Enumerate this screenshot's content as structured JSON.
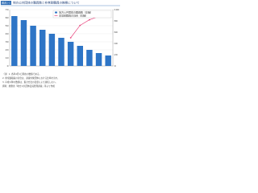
{
  "chart_data": {
    "type": "bar_line",
    "figure_label": "図表1-1",
    "title": "地方公共団体の職員数と非常勤職員の推移について",
    "categories": [
      null,
      null,
      null,
      null,
      null,
      null,
      null,
      null,
      null,
      null,
      null
    ],
    "series": [
      {
        "name": "地方公共団体の職員数（左軸）",
        "color": "#2e75c6",
        "type": "bar",
        "values": [
          62,
          57,
          50,
          45,
          40,
          35,
          30,
          25,
          20,
          16,
          13
        ]
      },
      {
        "name": "非常勤職員の割合（右軸）",
        "color": "#e8437c",
        "type": "line",
        "axis": "y2",
        "values": [
          null,
          null,
          null,
          null,
          null,
          null,
          50,
          72,
          82,
          88,
          92
        ]
      }
    ],
    "ylim": [
      0,
      70
    ],
    "yticks": [
      0,
      10,
      20,
      30,
      40,
      50,
      60,
      70
    ],
    "y2lim": [
      0,
      100
    ],
    "y2ticks": [
      0,
      20,
      40,
      60,
      80,
      100
    ],
    "notes": [
      "（注）1. 各年4月1日現在の数値である。",
      "2. 非常勤職員の割合は、調査対象団体における比率を示す。",
      "3. 平成以降の数値は、集計方法の変更により連続しない。",
      "資料：総務省「地方公共団体定員管理調査」等より作成"
    ]
  }
}
